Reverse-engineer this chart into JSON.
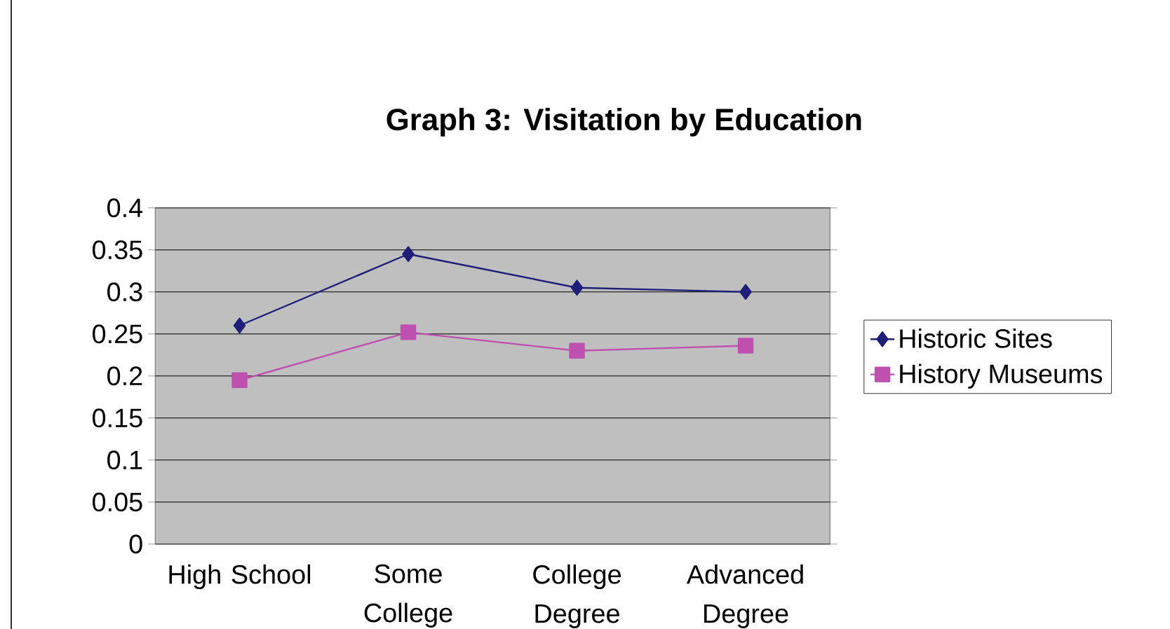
{
  "chart_data": {
    "type": "line",
    "title": "Graph 3:  Visitation by Education",
    "categories": [
      "High School",
      "Some College",
      "College Degree",
      "Advanced Degree"
    ],
    "series": [
      {
        "name": "Historic Sites",
        "color": "#1f1f7a",
        "marker": "diamond",
        "values": [
          0.26,
          0.345,
          0.305,
          0.3
        ]
      },
      {
        "name": "History Museums",
        "color": "#c050b0",
        "marker": "square",
        "values": [
          0.195,
          0.252,
          0.23,
          0.236
        ]
      }
    ],
    "ylim": [
      0,
      0.4
    ],
    "yticks": [
      0,
      0.05,
      0.1,
      0.15,
      0.2,
      0.25,
      0.3,
      0.35,
      0.4
    ],
    "grid": "y",
    "legend": "right",
    "line_style": "solid"
  }
}
